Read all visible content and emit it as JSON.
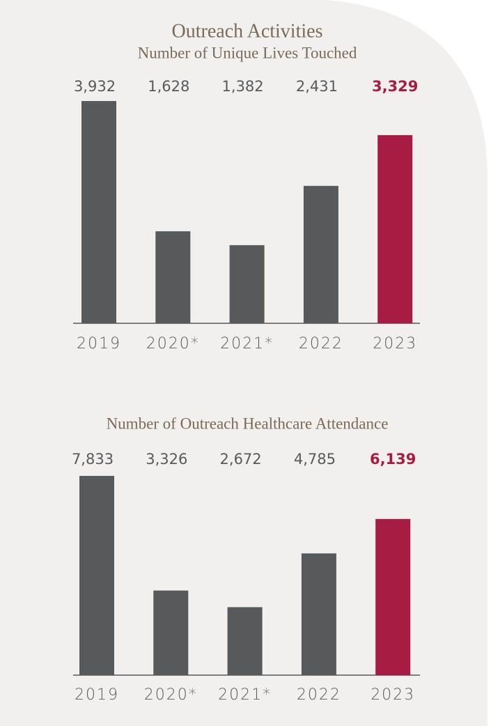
{
  "chart_data": [
    {
      "type": "bar",
      "title": "Outreach Activities",
      "subtitle": "Number of Unique Lives Touched",
      "categories": [
        "2019",
        "2020*",
        "2021*",
        "2022",
        "2023"
      ],
      "values": [
        3932,
        1628,
        1382,
        2431,
        3329
      ],
      "value_labels": [
        "3,932",
        "1,628",
        "1,382",
        "2,431",
        "3,329"
      ],
      "colors": [
        "#58595b",
        "#58595b",
        "#58595b",
        "#58595b",
        "#a61c42"
      ]
    },
    {
      "type": "bar",
      "title": "Number of Outreach Healthcare Attendance",
      "categories": [
        "2019",
        "2020*",
        "2021*",
        "2022",
        "2023"
      ],
      "values": [
        7833,
        3326,
        2672,
        4785,
        6139
      ],
      "value_labels": [
        "7,833",
        "3,326",
        "2,672",
        "4,785",
        "6,139"
      ],
      "colors": [
        "#58595b",
        "#58595b",
        "#58595b",
        "#58595b",
        "#a61c42"
      ]
    }
  ]
}
